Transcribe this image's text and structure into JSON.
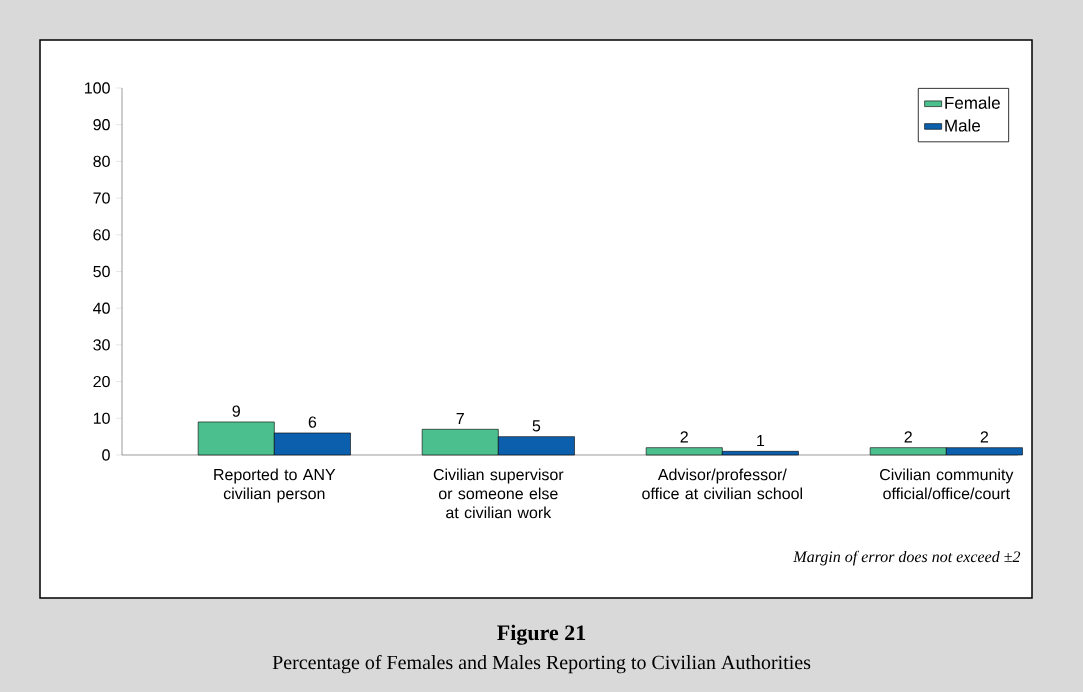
{
  "chart_data": {
    "type": "bar",
    "title": "Figure 21",
    "subtitle": "Percentage of Females and Males Reporting to Civilian Authorities",
    "categories": [
      "Reported to ANY civilian person",
      "Civilian supervisor or someone else at civilian work",
      "Advisor/professor/ office at civilian school",
      "Civilian community official/office/court"
    ],
    "series": [
      {
        "name": "Female",
        "color": "#4cbf8e",
        "values": [
          9,
          7,
          2,
          2
        ]
      },
      {
        "name": "Male",
        "color": "#0b5fad",
        "values": [
          6,
          5,
          1,
          2
        ]
      }
    ],
    "ylim": [
      0,
      100
    ],
    "yticks": [
      0,
      10,
      20,
      30,
      40,
      50,
      60,
      70,
      80,
      90,
      100
    ],
    "data_labels": true,
    "legend": "top right",
    "grid": false,
    "annotations": [
      "Margin of error does not exceed ±2"
    ]
  }
}
